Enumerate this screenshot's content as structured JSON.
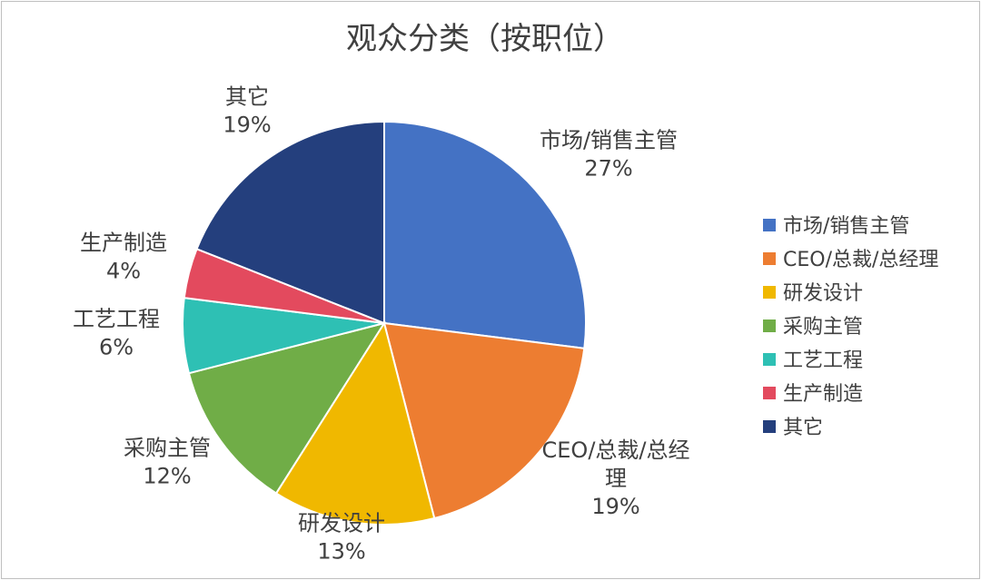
{
  "chart_data": {
    "type": "pie",
    "title": "观众分类（按职位）",
    "slices": [
      {
        "label": "市场/销售主管",
        "value": 27,
        "display": "27%",
        "color": "#4472C4"
      },
      {
        "label": "CEO/总裁/总经理",
        "value": 19,
        "display": "19%",
        "color": "#ED7D31"
      },
      {
        "label": "研发设计",
        "value": 13,
        "display": "13%",
        "color": "#F0B800"
      },
      {
        "label": "采购主管",
        "value": 12,
        "display": "12%",
        "color": "#70AD47"
      },
      {
        "label": "工艺工程",
        "value": 6,
        "display": "6%",
        "color": "#2EC0B4"
      },
      {
        "label": "生产制造",
        "value": 4,
        "display": "4%",
        "color": "#E34A5E"
      },
      {
        "label": "其它",
        "value": 19,
        "display": "19%",
        "color": "#243F7D"
      }
    ],
    "legend_position": "right"
  }
}
